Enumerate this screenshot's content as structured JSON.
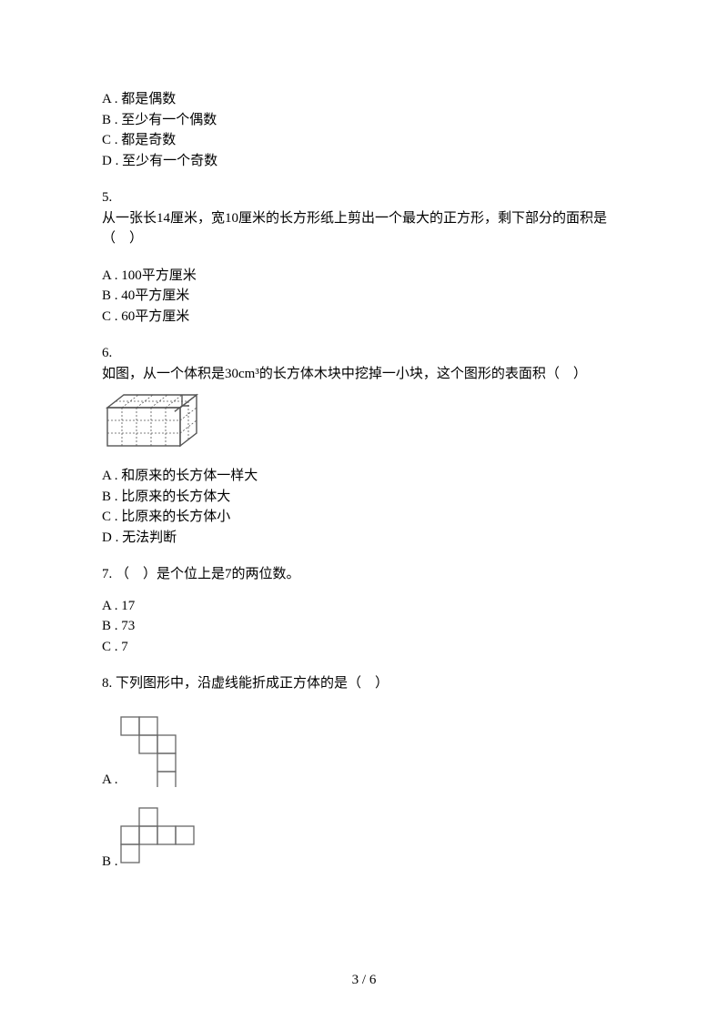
{
  "q4": {
    "optA": "A . 都是偶数",
    "optB": "B . 至少有一个偶数",
    "optC": "C . 都是奇数",
    "optD": "D . 至少有一个奇数"
  },
  "q5": {
    "num": "5.",
    "stem": "从一张长14厘米，宽10厘米的长方形纸上剪出一个最大的正方形，剩下部分的面积是（　）",
    "optA": "A . 100平方厘米",
    "optB": "B . 40平方厘米",
    "optC": "C . 60平方厘米"
  },
  "q6": {
    "num": "6.",
    "stem": "如图，从一个体积是30cm³的长方体木块中挖掉一小块，这个图形的表面积（　）",
    "optA": "A . 和原来的长方体一样大",
    "optB": "B . 比原来的长方体大",
    "optC": "C . 比原来的长方体小",
    "optD": "D . 无法判断",
    "figure": {
      "stroke": "#555555",
      "fill": "#ffffff",
      "dash": "2,2",
      "width": 110,
      "height": 70
    }
  },
  "q7": {
    "stem": "7. （　）是个位上是7的两位数。",
    "optA": "A . 17",
    "optB": "B . 73",
    "optC": "C . 7"
  },
  "q8": {
    "stem": "8.  下列图形中，沿虚线能折成正方体的是（　）",
    "labelA": "A . ",
    "labelB": "B . ",
    "figure": {
      "stroke": "#666666",
      "dash": "2,2",
      "cell": 20
    }
  },
  "pagenum": "3 / 6"
}
